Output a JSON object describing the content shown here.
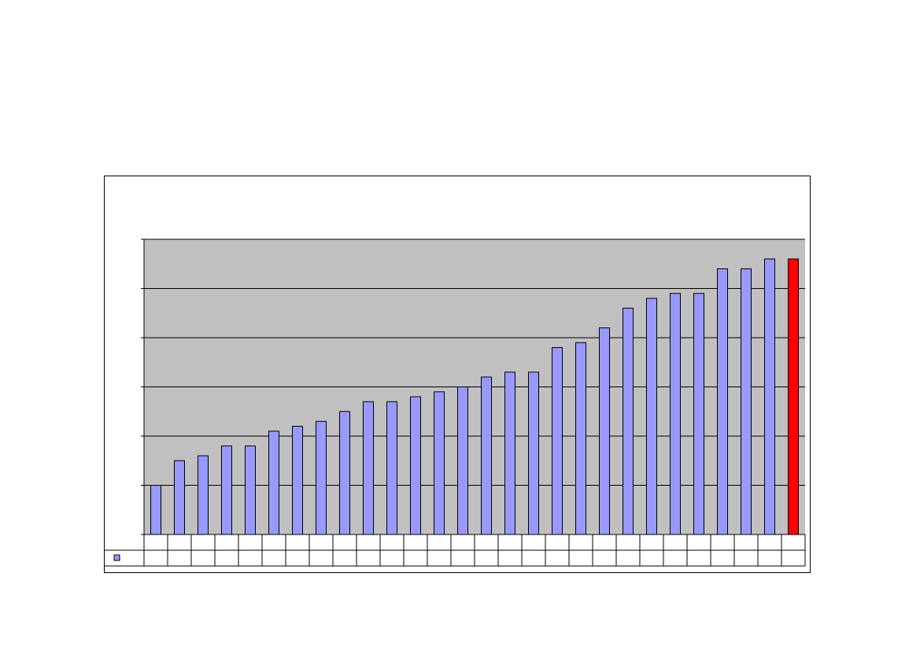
{
  "colors": {
    "plot_background": "#c0c0c0",
    "bar_fill": "#9999ff",
    "highlight_fill": "#ff0000",
    "bar_stroke": "#000000",
    "grid": "#000000"
  },
  "chart_data": {
    "type": "bar",
    "title": "",
    "xlabel": "",
    "ylabel": "",
    "categories": [
      "",
      "",
      "",
      "",
      "",
      "",
      "",
      "",
      "",
      "",
      "",
      "",
      "",
      "",
      "",
      "",
      "",
      "",
      "",
      "",
      "",
      "",
      "",
      "",
      "",
      "",
      "",
      ""
    ],
    "values": [
      1.0,
      1.5,
      1.6,
      1.8,
      1.8,
      2.1,
      2.2,
      2.3,
      2.5,
      2.7,
      2.7,
      2.8,
      2.9,
      3.0,
      3.2,
      3.3,
      3.3,
      3.8,
      3.9,
      4.2,
      4.6,
      4.8,
      4.9,
      4.9,
      5.4,
      5.4,
      5.6,
      5.6
    ],
    "highlight_index": 27,
    "ylim": [
      0,
      6
    ],
    "y_gridlines": [
      1,
      2,
      3,
      4,
      5,
      6
    ],
    "grid": true,
    "data_table": true,
    "legend_placement": "data-table-left",
    "series_marker_icon": "square-legend-key"
  }
}
